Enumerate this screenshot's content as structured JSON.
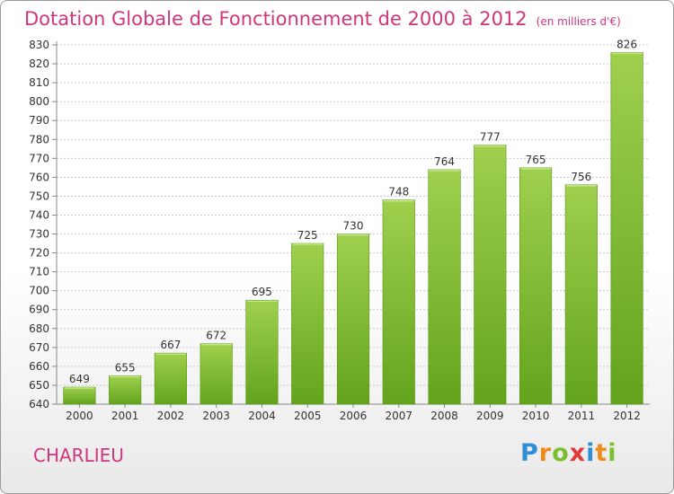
{
  "header": {
    "title": "Dotation Globale de Fonctionnement de 2000 à 2012",
    "unit": "(en milliers d'€)"
  },
  "footer": {
    "commune": "CHARLIEU",
    "logo_letters": [
      "P",
      "r",
      "o",
      "x",
      "i",
      "t",
      "i"
    ],
    "logo_colors": [
      "#2f8fd5",
      "#ef8a1c",
      "#7bbf2e",
      "#e03b3b",
      "#2f8fd5",
      "#ef8a1c",
      "#7bbf2e"
    ]
  },
  "chart_data": {
    "type": "bar",
    "categories": [
      "2000",
      "2001",
      "2002",
      "2003",
      "2004",
      "2005",
      "2006",
      "2007",
      "2008",
      "2009",
      "2010",
      "2011",
      "2012"
    ],
    "values": [
      649,
      655,
      667,
      672,
      695,
      725,
      730,
      748,
      764,
      777,
      765,
      756,
      826
    ],
    "title": "Dotation Globale de Fonctionnement de 2000 à 2012",
    "subtitle": "(en milliers d'€)",
    "ylim": [
      640,
      830
    ],
    "ytick_step": 10,
    "grid": true,
    "data_labels": true,
    "bar_color": "#7fbf35"
  }
}
